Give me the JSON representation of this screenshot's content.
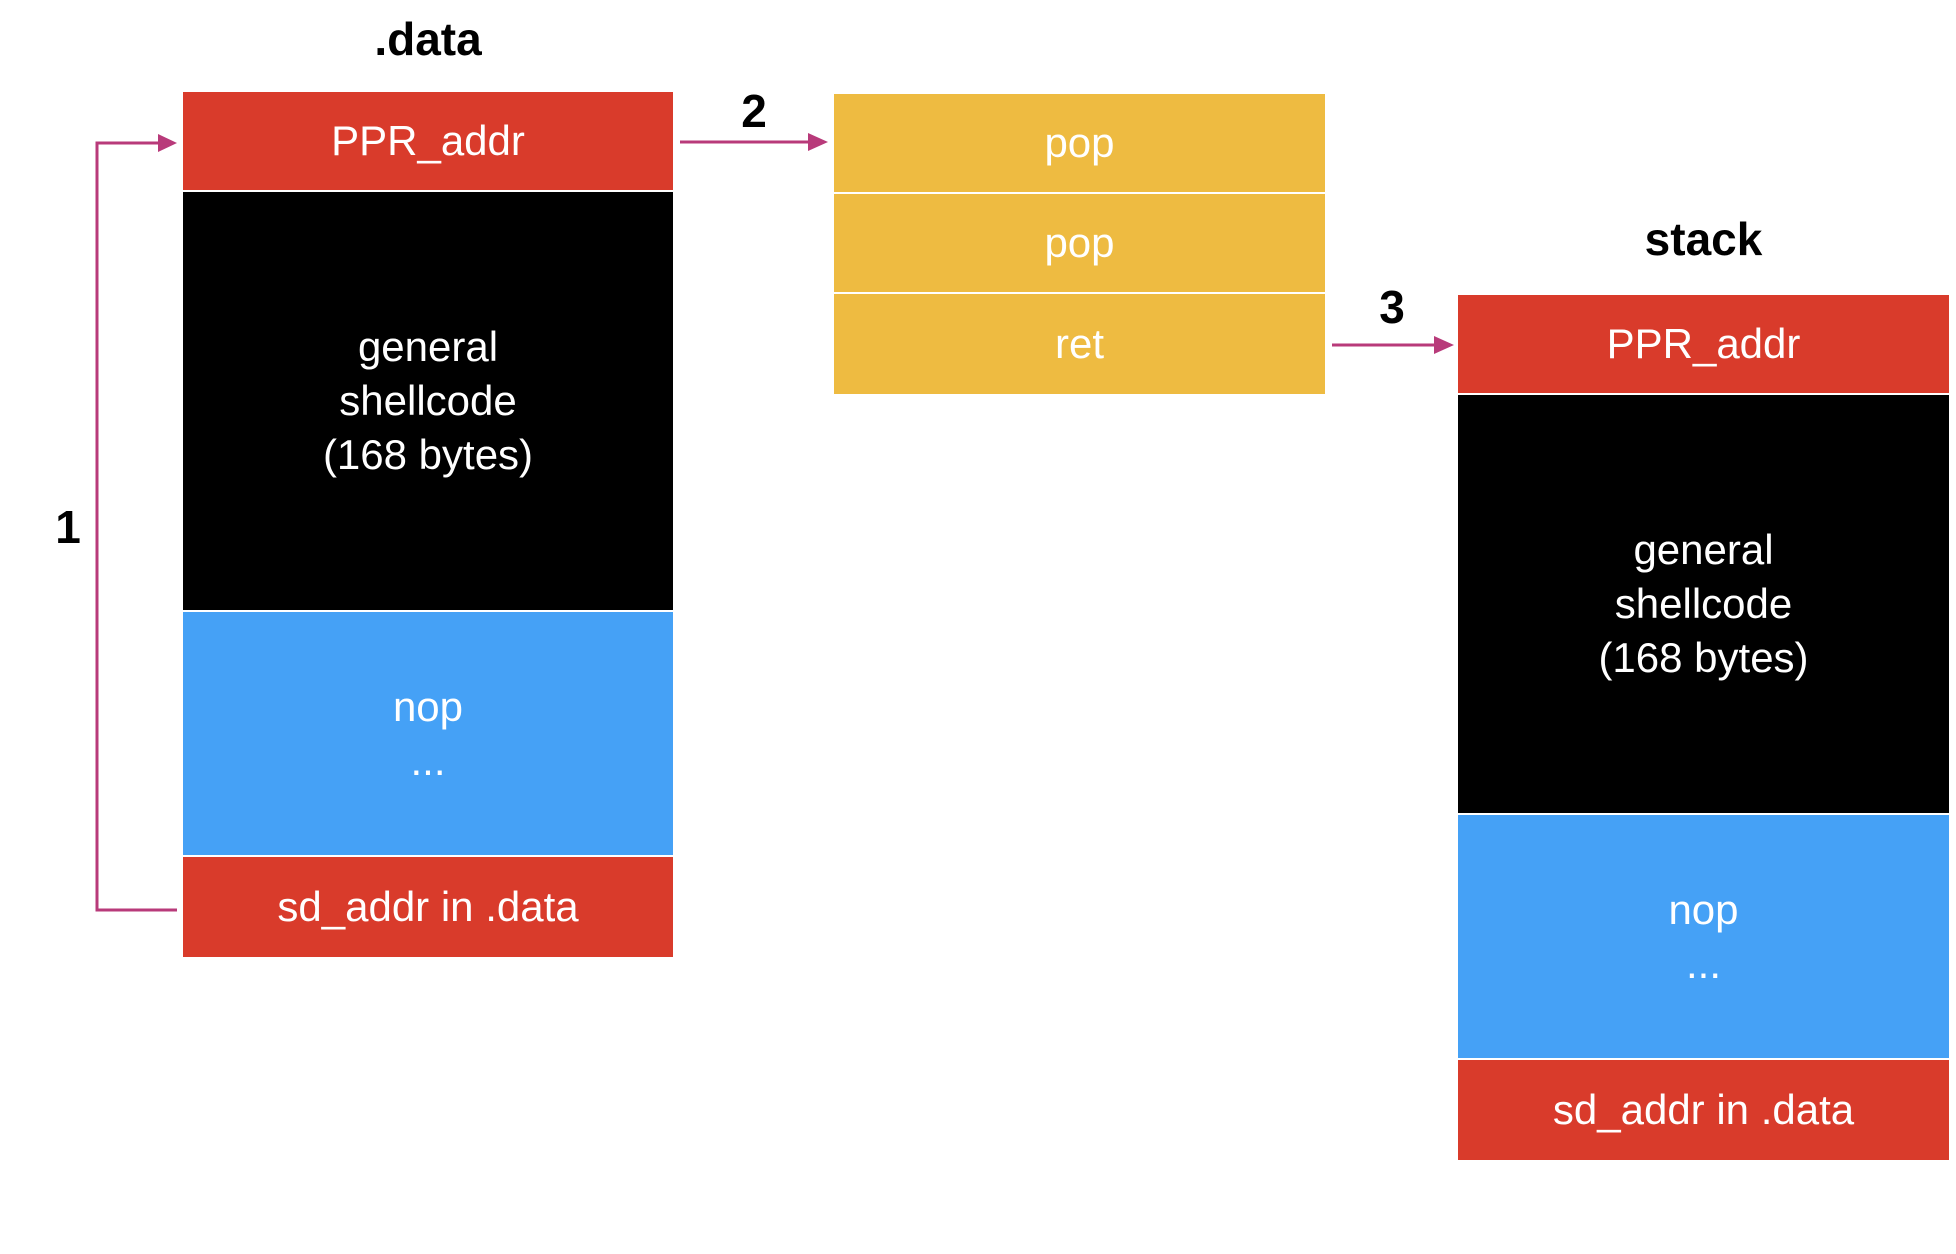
{
  "data_section": {
    "title": ".data",
    "ppr_addr": "PPR_addr",
    "shellcode_line1": "general",
    "shellcode_line2": "shellcode",
    "shellcode_line3": "(168 bytes)",
    "nop": "nop",
    "nop_dots": "...",
    "sd_addr": "sd_addr in .data"
  },
  "gadget": {
    "pop1": "pop",
    "pop2": "pop",
    "ret": "ret"
  },
  "stack_section": {
    "title": "stack",
    "ppr_addr": "PPR_addr",
    "shellcode_line1": "general",
    "shellcode_line2": "shellcode",
    "shellcode_line3": "(168 bytes)",
    "nop": "nop",
    "nop_dots": "...",
    "sd_addr": "sd_addr in .data"
  },
  "steps": {
    "step1": "1",
    "step2": "2",
    "step3": "3"
  },
  "colors": {
    "red": "#d93b2b",
    "black": "#000000",
    "blue": "#45a1f6",
    "yellow": "#eebb41",
    "arrow": "#b83a7a"
  }
}
